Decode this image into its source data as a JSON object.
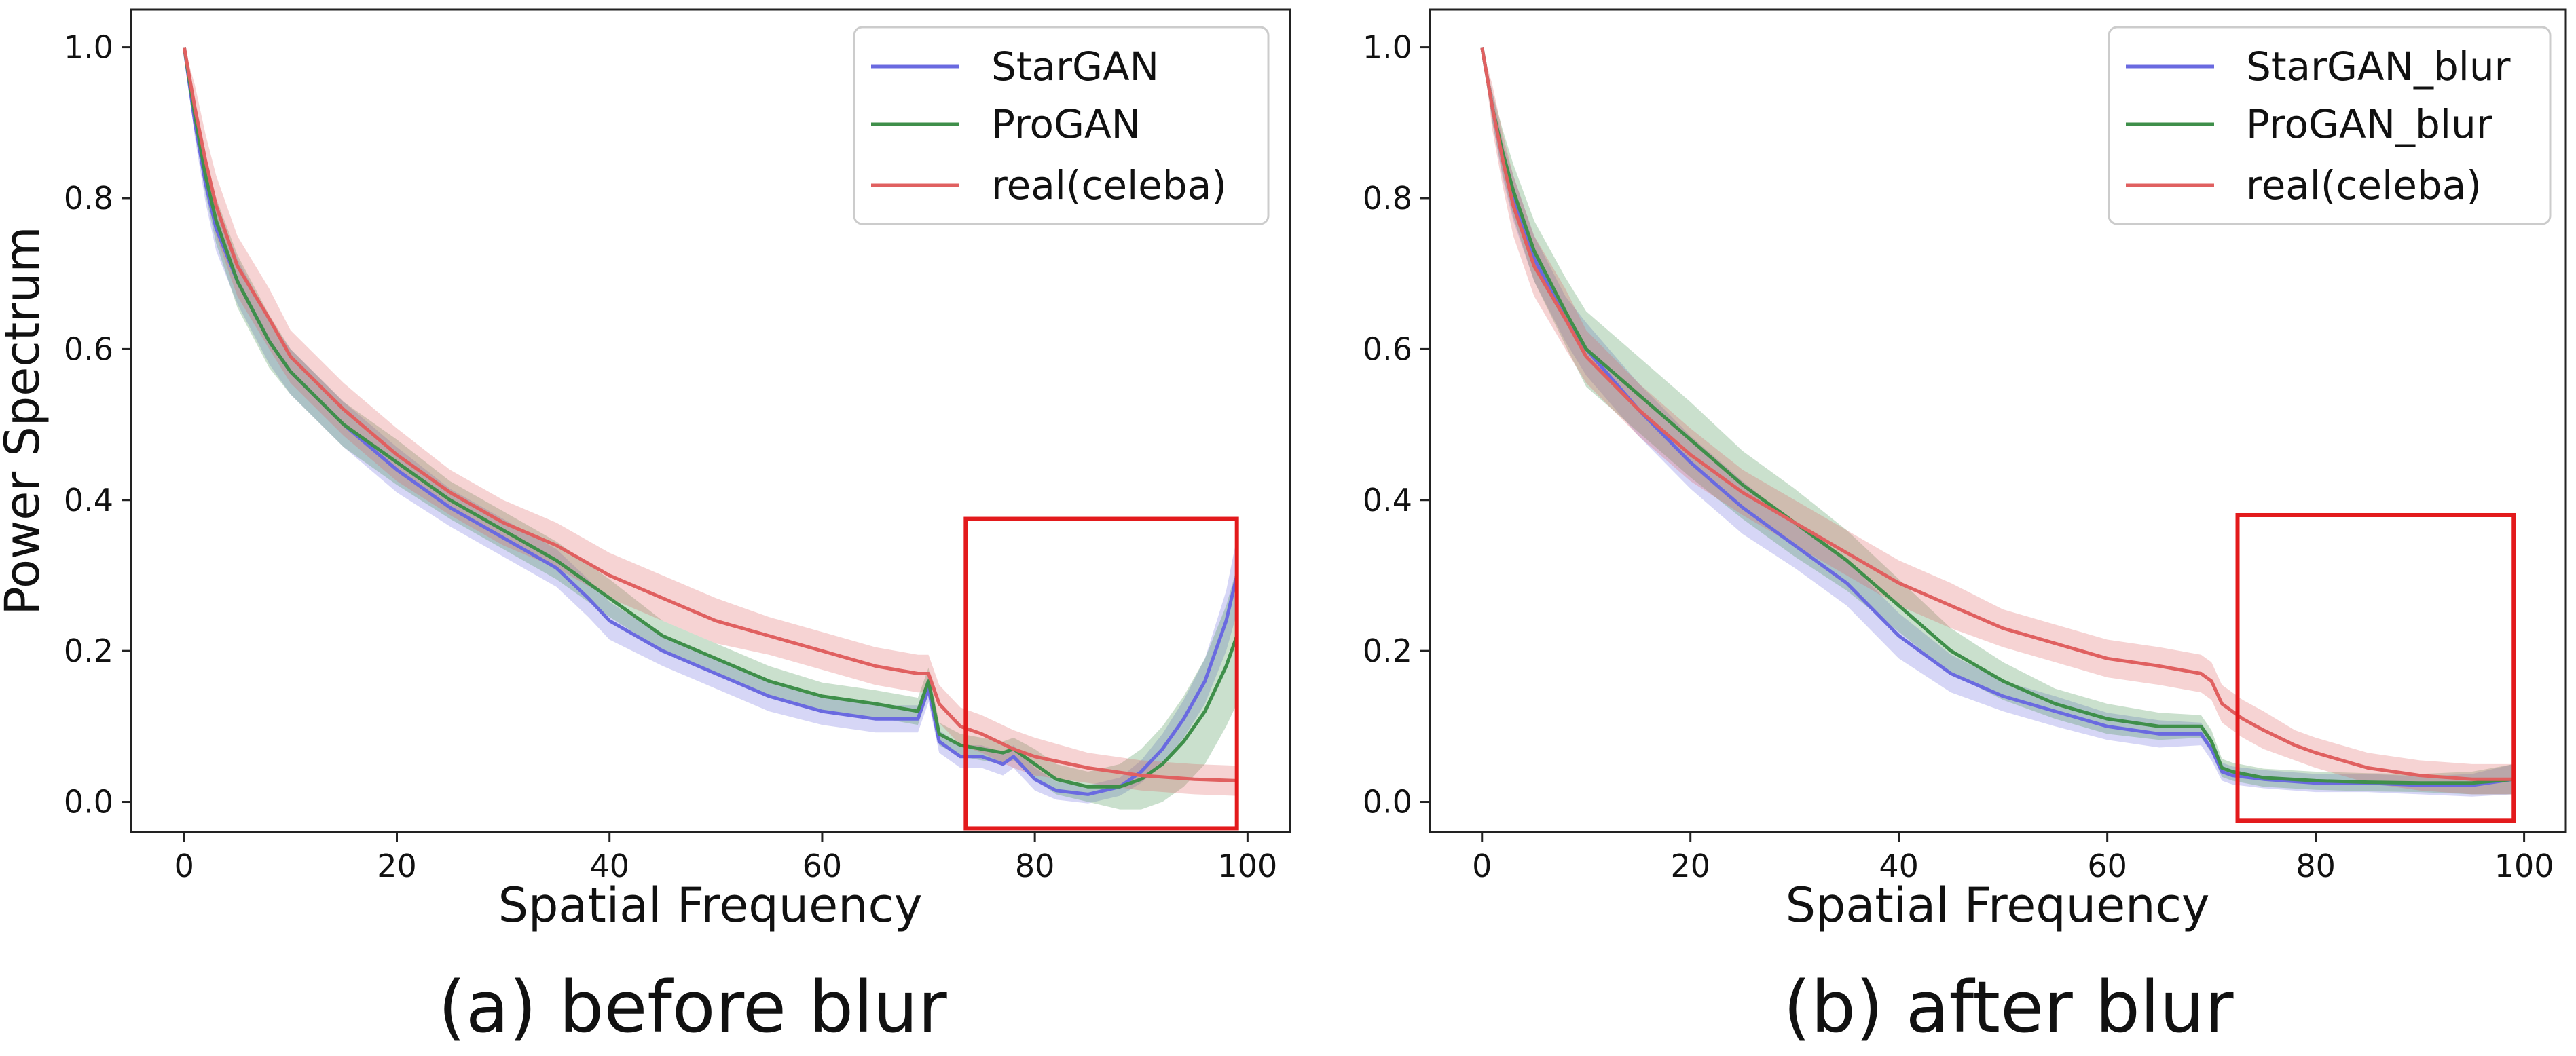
{
  "chart_data": [
    {
      "id": "a",
      "type": "line",
      "caption": "(a) before blur",
      "xlabel": "Spatial Frequency",
      "ylabel": "Power Spectrum",
      "xlim": [
        -5,
        104
      ],
      "ylim": [
        -0.04,
        1.05
      ],
      "xticks": [
        "0",
        "20",
        "40",
        "60",
        "80",
        "100"
      ],
      "yticks": [
        "0.0",
        "0.2",
        "0.4",
        "0.6",
        "0.8",
        "1.0"
      ],
      "legend_position": "top-right",
      "highlight_box": {
        "x_range": [
          73.5,
          99
        ],
        "y_range": [
          -0.035,
          0.375
        ],
        "color": "#e31a1c"
      },
      "series": [
        {
          "name": "StarGAN",
          "color": "#6a6ae0",
          "x": [
            0,
            1,
            2,
            3,
            5,
            8,
            10,
            15,
            20,
            25,
            30,
            35,
            38,
            40,
            45,
            50,
            55,
            60,
            65,
            69,
            70,
            71,
            73,
            75,
            77,
            78,
            80,
            82,
            85,
            88,
            90,
            92,
            94,
            96,
            98,
            99
          ],
          "values": [
            1.0,
            0.9,
            0.82,
            0.76,
            0.69,
            0.61,
            0.57,
            0.5,
            0.44,
            0.39,
            0.35,
            0.31,
            0.27,
            0.24,
            0.2,
            0.17,
            0.14,
            0.12,
            0.11,
            0.11,
            0.15,
            0.08,
            0.06,
            0.06,
            0.05,
            0.06,
            0.03,
            0.015,
            0.01,
            0.02,
            0.04,
            0.07,
            0.11,
            0.16,
            0.24,
            0.3
          ],
          "band": [
            0.0,
            0.02,
            0.025,
            0.03,
            0.03,
            0.03,
            0.03,
            0.03,
            0.03,
            0.025,
            0.025,
            0.025,
            0.025,
            0.025,
            0.02,
            0.02,
            0.02,
            0.018,
            0.018,
            0.018,
            0.018,
            0.015,
            0.015,
            0.015,
            0.015,
            0.015,
            0.015,
            0.012,
            0.012,
            0.012,
            0.015,
            0.02,
            0.025,
            0.03,
            0.04,
            0.05
          ]
        },
        {
          "name": "ProGAN",
          "color": "#3f8f4a",
          "x": [
            0,
            1,
            2,
            3,
            5,
            8,
            10,
            15,
            20,
            25,
            30,
            35,
            38,
            40,
            45,
            50,
            55,
            60,
            65,
            69,
            70,
            71,
            73,
            75,
            77,
            78,
            80,
            82,
            85,
            88,
            90,
            92,
            94,
            96,
            98,
            99
          ],
          "values": [
            1.0,
            0.91,
            0.83,
            0.77,
            0.69,
            0.61,
            0.57,
            0.5,
            0.45,
            0.4,
            0.36,
            0.32,
            0.29,
            0.27,
            0.22,
            0.19,
            0.16,
            0.14,
            0.13,
            0.12,
            0.16,
            0.09,
            0.075,
            0.07,
            0.065,
            0.07,
            0.05,
            0.03,
            0.02,
            0.02,
            0.03,
            0.05,
            0.08,
            0.12,
            0.18,
            0.22
          ],
          "band": [
            0.0,
            0.02,
            0.025,
            0.03,
            0.035,
            0.035,
            0.03,
            0.03,
            0.03,
            0.025,
            0.025,
            0.025,
            0.025,
            0.025,
            0.02,
            0.02,
            0.02,
            0.018,
            0.018,
            0.018,
            0.018,
            0.015,
            0.015,
            0.015,
            0.015,
            0.015,
            0.02,
            0.02,
            0.02,
            0.03,
            0.04,
            0.05,
            0.06,
            0.07,
            0.08,
            0.09
          ]
        },
        {
          "name": "real(celeba)",
          "color": "#e06060",
          "x": [
            0,
            1,
            2,
            3,
            5,
            8,
            10,
            15,
            20,
            25,
            30,
            35,
            40,
            45,
            50,
            55,
            60,
            65,
            69,
            70,
            71,
            73,
            75,
            78,
            80,
            85,
            90,
            95,
            99
          ],
          "values": [
            1.0,
            0.92,
            0.85,
            0.79,
            0.71,
            0.64,
            0.59,
            0.52,
            0.46,
            0.41,
            0.37,
            0.34,
            0.3,
            0.27,
            0.24,
            0.22,
            0.2,
            0.18,
            0.17,
            0.17,
            0.13,
            0.1,
            0.09,
            0.07,
            0.06,
            0.045,
            0.035,
            0.03,
            0.028
          ],
          "band": [
            0.0,
            0.03,
            0.035,
            0.04,
            0.04,
            0.04,
            0.035,
            0.035,
            0.035,
            0.03,
            0.03,
            0.03,
            0.03,
            0.03,
            0.03,
            0.025,
            0.025,
            0.025,
            0.025,
            0.025,
            0.025,
            0.025,
            0.025,
            0.025,
            0.025,
            0.02,
            0.02,
            0.02,
            0.02
          ]
        }
      ]
    },
    {
      "id": "b",
      "type": "line",
      "caption": "(b) after blur",
      "xlabel": "Spatial Frequency",
      "ylabel": "",
      "xlim": [
        -5,
        104
      ],
      "ylim": [
        -0.04,
        1.05
      ],
      "xticks": [
        "0",
        "20",
        "40",
        "60",
        "80",
        "100"
      ],
      "yticks": [
        "0.0",
        "0.2",
        "0.4",
        "0.6",
        "0.8",
        "1.0"
      ],
      "legend_position": "top-right",
      "highlight_box": {
        "x_range": [
          72.5,
          99
        ],
        "y_range": [
          -0.025,
          0.38
        ],
        "color": "#e31a1c"
      },
      "series": [
        {
          "name": "StarGAN_blur",
          "color": "#6a6ae0",
          "x": [
            0,
            1,
            2,
            3,
            5,
            8,
            10,
            15,
            20,
            25,
            30,
            35,
            40,
            45,
            50,
            55,
            60,
            65,
            69,
            70,
            71,
            72,
            75,
            80,
            85,
            90,
            95,
            99
          ],
          "values": [
            1.0,
            0.92,
            0.85,
            0.8,
            0.72,
            0.64,
            0.6,
            0.52,
            0.45,
            0.39,
            0.34,
            0.29,
            0.22,
            0.17,
            0.14,
            0.12,
            0.1,
            0.09,
            0.09,
            0.07,
            0.04,
            0.035,
            0.03,
            0.025,
            0.025,
            0.022,
            0.022,
            0.03
          ],
          "band": [
            0.0,
            0.02,
            0.025,
            0.03,
            0.03,
            0.03,
            0.035,
            0.035,
            0.035,
            0.035,
            0.03,
            0.03,
            0.03,
            0.025,
            0.02,
            0.02,
            0.018,
            0.018,
            0.015,
            0.015,
            0.012,
            0.012,
            0.012,
            0.012,
            0.012,
            0.012,
            0.015,
            0.02
          ]
        },
        {
          "name": "ProGAN_blur",
          "color": "#3f8f4a",
          "x": [
            0,
            1,
            2,
            3,
            5,
            8,
            10,
            15,
            20,
            25,
            30,
            35,
            40,
            45,
            50,
            55,
            60,
            65,
            69,
            70,
            71,
            72,
            75,
            80,
            85,
            90,
            95,
            99
          ],
          "values": [
            1.0,
            0.92,
            0.86,
            0.81,
            0.73,
            0.65,
            0.6,
            0.54,
            0.48,
            0.42,
            0.37,
            0.32,
            0.26,
            0.2,
            0.16,
            0.13,
            0.11,
            0.1,
            0.1,
            0.08,
            0.045,
            0.04,
            0.032,
            0.028,
            0.026,
            0.025,
            0.025,
            0.03
          ],
          "band": [
            0.0,
            0.02,
            0.03,
            0.035,
            0.04,
            0.045,
            0.05,
            0.05,
            0.05,
            0.045,
            0.045,
            0.04,
            0.035,
            0.03,
            0.025,
            0.02,
            0.02,
            0.018,
            0.015,
            0.015,
            0.012,
            0.012,
            0.012,
            0.012,
            0.012,
            0.012,
            0.015,
            0.02
          ]
        },
        {
          "name": "real(celeba)",
          "color": "#e06060",
          "x": [
            0,
            1,
            2,
            3,
            5,
            8,
            10,
            15,
            20,
            25,
            30,
            35,
            40,
            45,
            50,
            55,
            60,
            65,
            69,
            70,
            71,
            73,
            75,
            78,
            80,
            85,
            90,
            95,
            99
          ],
          "values": [
            1.0,
            0.92,
            0.85,
            0.79,
            0.71,
            0.64,
            0.59,
            0.52,
            0.46,
            0.41,
            0.37,
            0.33,
            0.29,
            0.26,
            0.23,
            0.21,
            0.19,
            0.18,
            0.17,
            0.16,
            0.13,
            0.11,
            0.095,
            0.075,
            0.065,
            0.045,
            0.035,
            0.03,
            0.03
          ],
          "band": [
            0.0,
            0.03,
            0.035,
            0.04,
            0.04,
            0.04,
            0.035,
            0.035,
            0.035,
            0.03,
            0.03,
            0.03,
            0.03,
            0.03,
            0.025,
            0.025,
            0.025,
            0.025,
            0.025,
            0.025,
            0.025,
            0.025,
            0.025,
            0.02,
            0.02,
            0.02,
            0.02,
            0.02,
            0.02
          ]
        }
      ]
    }
  ]
}
